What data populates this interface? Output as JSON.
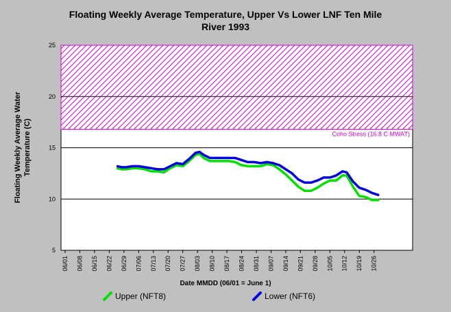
{
  "chart_data": {
    "type": "line",
    "title_line1": "Floating Weekly Average Temperature, Upper Vs Lower LNF Ten Mile",
    "title_line2": "River 1993",
    "ylabel_line1": "Floating Weekly Average Water",
    "ylabel_line2": "Temperature (C)",
    "xlabel": "Date MMDD (06/01 = June 1)",
    "ylim": [
      5,
      25
    ],
    "yticks": [
      5,
      10,
      15,
      20,
      25
    ],
    "grid": "horizontal",
    "xticks": [
      "06/01",
      "06/08",
      "06/15",
      "06/22",
      "06/29",
      "07/06",
      "07/13",
      "07/20",
      "07/27",
      "08/03",
      "08/10",
      "08/17",
      "08/24",
      "08/31",
      "09/07",
      "09/14",
      "09/21",
      "09/28",
      "10/05",
      "10/12",
      "10/19",
      "10/26"
    ],
    "threshold": {
      "label": "Coho Stress (16.8 C MWAT)",
      "from": 16.8,
      "to": 25,
      "color": "#cc00cc"
    },
    "series": [
      {
        "name": "Upper (NFT8)",
        "color": "#00e000",
        "points": [
          [
            "06/26",
            13.0
          ],
          [
            "06/28",
            12.9
          ],
          [
            "06/30",
            12.9
          ],
          [
            "07/03",
            13.0
          ],
          [
            "07/06",
            13.0
          ],
          [
            "07/09",
            12.9
          ],
          [
            "07/12",
            12.7
          ],
          [
            "07/15",
            12.7
          ],
          [
            "07/18",
            12.6
          ],
          [
            "07/21",
            13.0
          ],
          [
            "07/24",
            13.3
          ],
          [
            "07/27",
            13.2
          ],
          [
            "07/30",
            13.7
          ],
          [
            "08/02",
            14.3
          ],
          [
            "08/04",
            14.4
          ],
          [
            "08/06",
            14.0
          ],
          [
            "08/09",
            13.7
          ],
          [
            "08/12",
            13.7
          ],
          [
            "08/15",
            13.7
          ],
          [
            "08/18",
            13.7
          ],
          [
            "08/21",
            13.6
          ],
          [
            "08/24",
            13.3
          ],
          [
            "08/27",
            13.2
          ],
          [
            "08/30",
            13.2
          ],
          [
            "09/02",
            13.2
          ],
          [
            "09/05",
            13.4
          ],
          [
            "09/08",
            13.3
          ],
          [
            "09/11",
            12.9
          ],
          [
            "09/14",
            12.4
          ],
          [
            "09/17",
            11.8
          ],
          [
            "09/20",
            11.2
          ],
          [
            "09/23",
            10.8
          ],
          [
            "09/26",
            10.8
          ],
          [
            "09/29",
            11.1
          ],
          [
            "10/02",
            11.5
          ],
          [
            "10/05",
            11.8
          ],
          [
            "10/08",
            11.8
          ],
          [
            "10/11",
            12.3
          ],
          [
            "10/13",
            12.3
          ],
          [
            "10/16",
            11.2
          ],
          [
            "10/19",
            10.3
          ],
          [
            "10/22",
            10.2
          ],
          [
            "10/25",
            9.9
          ],
          [
            "10/28",
            9.9
          ]
        ]
      },
      {
        "name": "Lower (NFT6)",
        "color": "#0000e0",
        "points": [
          [
            "06/26",
            13.2
          ],
          [
            "06/28",
            13.1
          ],
          [
            "06/30",
            13.1
          ],
          [
            "07/03",
            13.2
          ],
          [
            "07/06",
            13.2
          ],
          [
            "07/09",
            13.1
          ],
          [
            "07/12",
            13.0
          ],
          [
            "07/15",
            12.9
          ],
          [
            "07/18",
            12.9
          ],
          [
            "07/21",
            13.2
          ],
          [
            "07/24",
            13.5
          ],
          [
            "07/27",
            13.4
          ],
          [
            "07/30",
            13.9
          ],
          [
            "08/02",
            14.5
          ],
          [
            "08/04",
            14.6
          ],
          [
            "08/06",
            14.3
          ],
          [
            "08/09",
            14.0
          ],
          [
            "08/12",
            14.0
          ],
          [
            "08/15",
            14.0
          ],
          [
            "08/18",
            14.0
          ],
          [
            "08/21",
            14.0
          ],
          [
            "08/24",
            13.8
          ],
          [
            "08/27",
            13.6
          ],
          [
            "08/30",
            13.6
          ],
          [
            "09/02",
            13.5
          ],
          [
            "09/05",
            13.6
          ],
          [
            "09/08",
            13.5
          ],
          [
            "09/11",
            13.3
          ],
          [
            "09/14",
            12.9
          ],
          [
            "09/17",
            12.5
          ],
          [
            "09/20",
            11.9
          ],
          [
            "09/23",
            11.6
          ],
          [
            "09/26",
            11.6
          ],
          [
            "09/29",
            11.8
          ],
          [
            "10/02",
            12.1
          ],
          [
            "10/05",
            12.1
          ],
          [
            "10/08",
            12.3
          ],
          [
            "10/11",
            12.7
          ],
          [
            "10/13",
            12.6
          ],
          [
            "10/16",
            11.7
          ],
          [
            "10/19",
            11.1
          ],
          [
            "10/22",
            10.9
          ],
          [
            "10/25",
            10.6
          ],
          [
            "10/28",
            10.4
          ]
        ]
      }
    ]
  }
}
